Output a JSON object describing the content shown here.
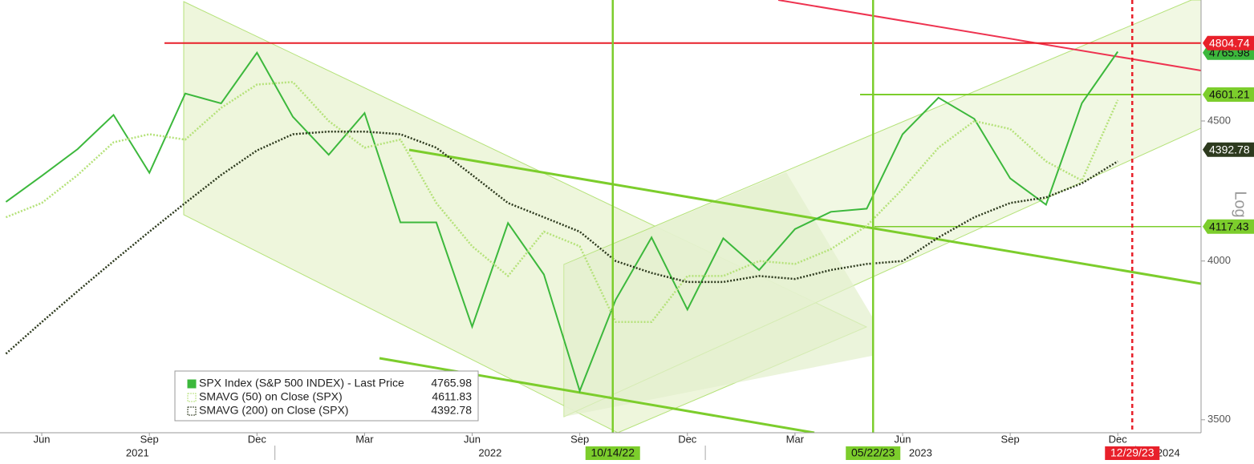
{
  "chart_data": {
    "type": "line",
    "log_scale": true,
    "x": [
      "2021-05",
      "2021-06",
      "2021-07",
      "2021-08",
      "2021-09",
      "2021-10",
      "2021-11",
      "2021-12",
      "2022-01",
      "2022-02",
      "2022-03",
      "2022-04",
      "2022-05",
      "2022-06",
      "2022-07",
      "2022-08",
      "2022-09",
      "2022-10",
      "2022-11",
      "2022-12",
      "2023-01",
      "2023-02",
      "2023-03",
      "2023-04",
      "2023-05",
      "2023-06",
      "2023-07",
      "2023-08",
      "2023-09",
      "2023-10",
      "2023-11",
      "2023-12"
    ],
    "xlim": [
      "2021-05",
      "2024-03"
    ],
    "xticks": [
      {
        "value": "2021-06",
        "label": "Jun"
      },
      {
        "value": "2021-09",
        "label": "Sep"
      },
      {
        "value": "2021-12",
        "label": "Dec"
      },
      {
        "value": "2022-03",
        "label": "Mar"
      },
      {
        "value": "2022-06",
        "label": "Jun"
      },
      {
        "value": "2022-09",
        "label": "Sep"
      },
      {
        "value": "2022-12",
        "label": "Dec"
      },
      {
        "value": "2023-03",
        "label": "Mar"
      },
      {
        "value": "2023-06",
        "label": "Jun"
      },
      {
        "value": "2023-09",
        "label": "Sep"
      },
      {
        "value": "2023-12",
        "label": "Dec"
      }
    ],
    "years": [
      "2021",
      "2022",
      "2023",
      "2024"
    ],
    "ylim": [
      3462,
      4982
    ],
    "yticks": [
      3500,
      4000,
      4500
    ],
    "y_axis_label": "Log",
    "series": [
      {
        "name": "SPX Index (S&P 500 INDEX) - Last Price",
        "color": "#3cb83c",
        "last": 4765.98,
        "values": [
          4204,
          4297,
          4395,
          4523,
          4308,
          4605,
          4567,
          4766,
          4516,
          4374,
          4530,
          4132,
          4132,
          3785,
          4130,
          3955,
          3586,
          3872,
          4080,
          3840,
          4077,
          3970,
          4109,
          4169,
          4180,
          4450,
          4589,
          4508,
          4288,
          4194,
          4568,
          4770
        ]
      },
      {
        "name": "SMAVG (50)  on Close (SPX)",
        "color": "#b5e27a",
        "last": 4611.83,
        "values": [
          4150,
          4200,
          4300,
          4420,
          4450,
          4430,
          4550,
          4640,
          4650,
          4500,
          4400,
          4430,
          4200,
          4050,
          3950,
          4100,
          4050,
          3800,
          3800,
          3950,
          3950,
          4000,
          3990,
          4040,
          4120,
          4250,
          4400,
          4500,
          4470,
          4350,
          4280,
          4580
        ]
      },
      {
        "name": "SMAVG (200)  on Close (SPX)",
        "color": "#2d3a1e",
        "last": 4392.78,
        "values": [
          3700,
          3800,
          3900,
          4000,
          4100,
          4200,
          4300,
          4390,
          4450,
          4460,
          4460,
          4450,
          4400,
          4300,
          4200,
          4150,
          4100,
          4000,
          3960,
          3930,
          3930,
          3950,
          3940,
          3970,
          3990,
          4000,
          4080,
          4150,
          4200,
          4220,
          4270,
          4350
        ]
      }
    ],
    "levels": [
      {
        "value": 4804.74,
        "color": "#e8202a"
      },
      {
        "value": 4601.21,
        "color": "#7ccd2c"
      },
      {
        "value": 4117.43,
        "color": "#7ccd2c"
      }
    ],
    "markers": [
      {
        "label": "10/14/22",
        "color": "#7ccd2c"
      },
      {
        "label": "05/22/23",
        "color": "#7ccd2c"
      },
      {
        "label": "12/29/23",
        "color": "#e8202a"
      }
    ]
  }
}
